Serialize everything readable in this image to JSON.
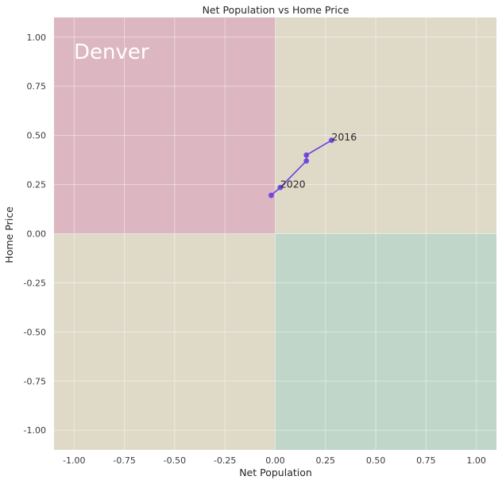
{
  "chart_data": {
    "type": "line",
    "title": "Net Population vs Home Price",
    "xlabel": "Net Population",
    "ylabel": "Home Price",
    "xlim": [
      -1.1,
      1.1
    ],
    "ylim": [
      -1.1,
      1.1
    ],
    "x_ticks": [
      "-1.00",
      "-0.75",
      "-0.50",
      "-0.25",
      "0.00",
      "0.25",
      "0.50",
      "0.75",
      "1.00"
    ],
    "y_ticks": [
      "1.00",
      "0.75",
      "0.50",
      "0.25",
      "0.00",
      "-0.25",
      "-0.50",
      "-0.75",
      "-1.00"
    ],
    "grid": true,
    "quadrants": [
      {
        "name": "top-left",
        "color": "#dcb6c0"
      },
      {
        "name": "top-right",
        "color": "#dfd9c8"
      },
      {
        "name": "bottom-left",
        "color": "#dfd9c8"
      },
      {
        "name": "bottom-right",
        "color": "#bfd6c8"
      }
    ],
    "series": [
      {
        "color": "#6a3de0",
        "x": [
          0.28,
          0.155,
          0.155,
          0.025,
          -0.02
        ],
        "y": [
          0.475,
          0.4,
          0.37,
          0.235,
          0.195
        ]
      }
    ],
    "annotations": [
      {
        "text": "2016",
        "x": 0.28,
        "y": 0.475
      },
      {
        "text": "2020",
        "x": 0.025,
        "y": 0.235
      }
    ],
    "quadrant_label": "Denver"
  }
}
